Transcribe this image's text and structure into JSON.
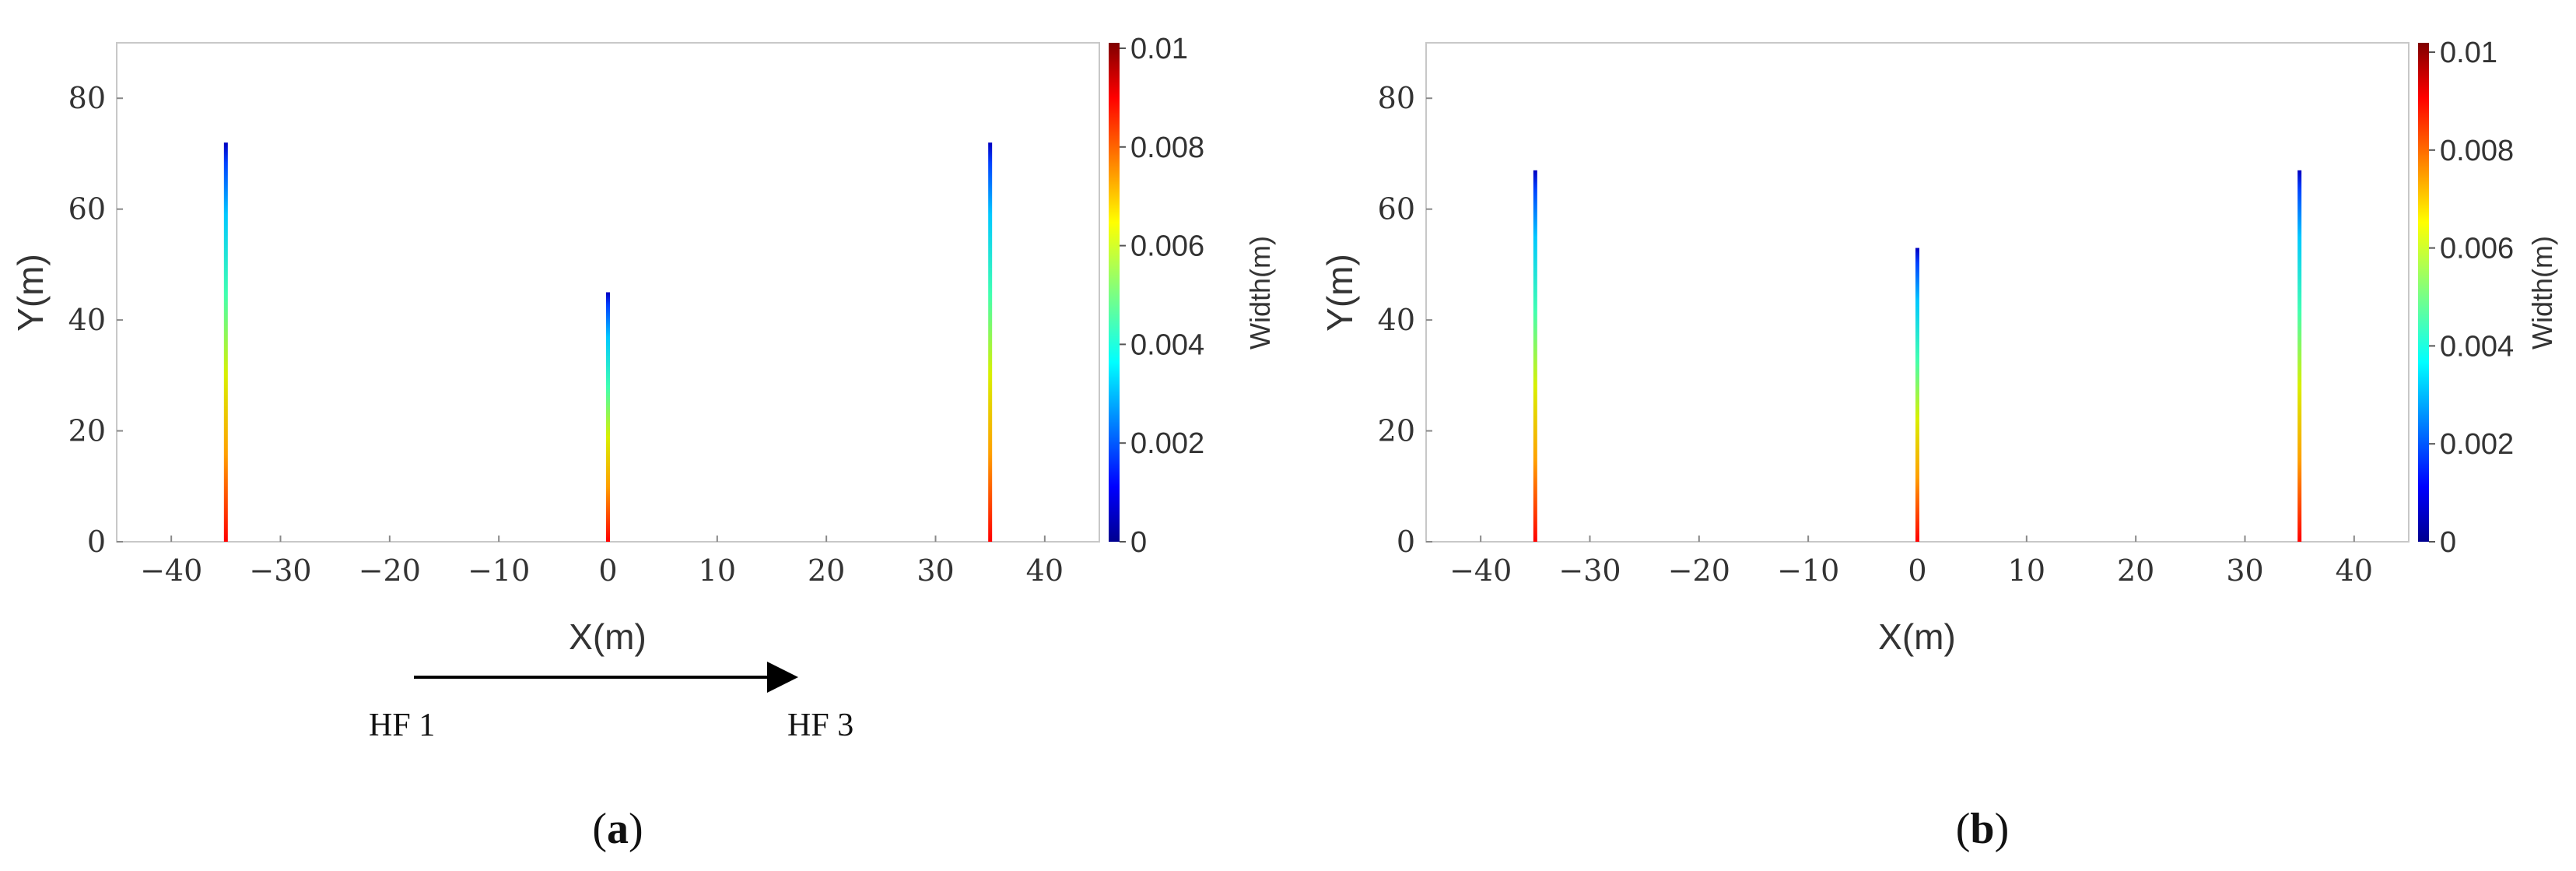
{
  "chart_data": [
    {
      "type": "line",
      "panel_label": "a",
      "xlabel": "X(m)",
      "ylabel": "Y(m)",
      "xlim": [
        -45,
        45
      ],
      "ylim": [
        0,
        90
      ],
      "xticks": [
        -40,
        -30,
        -20,
        -10,
        0,
        10,
        20,
        30,
        40
      ],
      "yticks": [
        0,
        20,
        40,
        60,
        80
      ],
      "series": [
        {
          "x": -35,
          "y": [
            0,
            72
          ]
        },
        {
          "x": 0,
          "y": [
            0,
            45
          ]
        },
        {
          "x": 35,
          "y": [
            0,
            72
          ]
        }
      ],
      "colorbar": {
        "label": "Width(m)",
        "range": [
          0,
          0.01
        ],
        "ticks": [
          "0",
          "0.002",
          "0.004",
          "0.006",
          "0.008",
          "0.01"
        ],
        "colormap": "jet"
      },
      "annotation": {
        "from": "HF 1",
        "to": "HF 3",
        "arrow": true
      }
    },
    {
      "type": "line",
      "panel_label": "b",
      "xlabel": "X(m)",
      "ylabel": "Y(m)",
      "xlim": [
        -45,
        45
      ],
      "ylim": [
        0,
        90
      ],
      "xticks": [
        -40,
        -30,
        -20,
        -10,
        0,
        10,
        20,
        30,
        40
      ],
      "yticks": [
        0,
        20,
        40,
        60,
        80
      ],
      "series": [
        {
          "x": -35,
          "y": [
            0,
            67
          ]
        },
        {
          "x": 0,
          "y": [
            0,
            53
          ]
        },
        {
          "x": 35,
          "y": [
            0,
            67
          ]
        }
      ],
      "colorbar": {
        "label": "Width(m)",
        "range": [
          0,
          0.0102
        ],
        "ticks": [
          "0",
          "0.002",
          "0.004",
          "0.006",
          "0.008",
          "0.01"
        ],
        "colormap": "jet"
      }
    }
  ]
}
